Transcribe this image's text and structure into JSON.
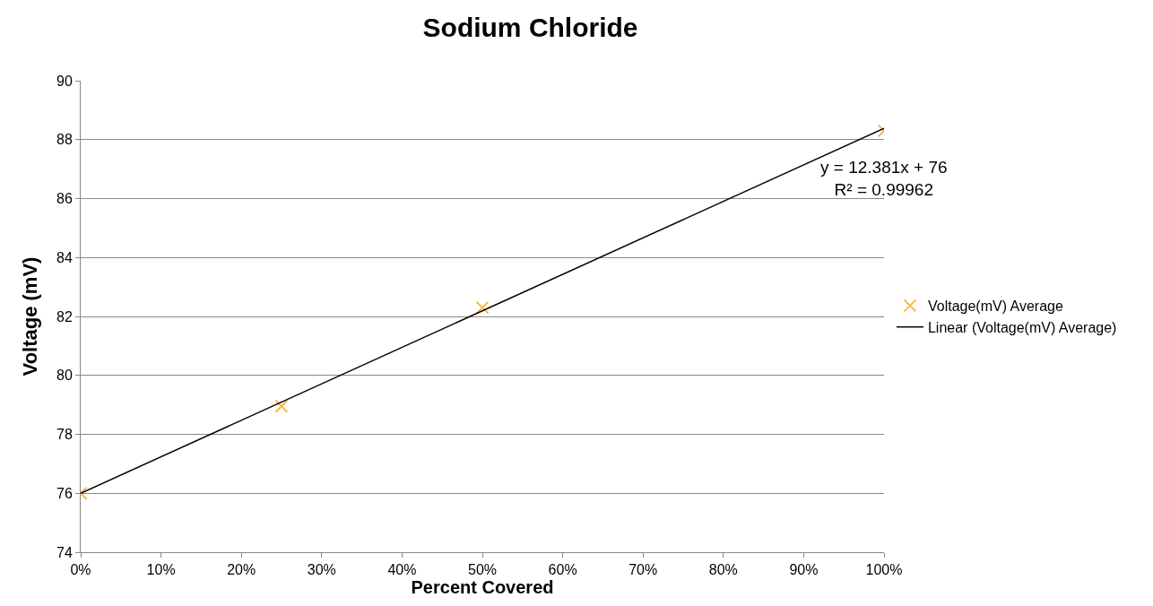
{
  "chart_data": {
    "type": "scatter",
    "title": "Sodium Chloride",
    "xlabel": "Percent Covered",
    "ylabel": "Voltage (mV)",
    "x": [
      0,
      0.25,
      0.5,
      1
    ],
    "series": [
      {
        "name": "Voltage(mV) Average",
        "color": "#f7b84b",
        "values": [
          76,
          78.95,
          82.3,
          88.3
        ],
        "marker": "cross"
      },
      {
        "name": "Linear (Voltage(mV) Average)",
        "type": "line",
        "color": "#000000",
        "x": [
          0,
          1
        ],
        "values": [
          76,
          88.381
        ],
        "marker": "none",
        "line_style": "solid"
      }
    ],
    "annotations": [
      "y = 12.381x + 76\nR² = 0.99962"
    ],
    "xlim": [
      0,
      1
    ],
    "xticks": [
      {
        "value": 0,
        "label": "0%"
      },
      {
        "value": 0.1,
        "label": "10%"
      },
      {
        "value": 0.2,
        "label": "20%"
      },
      {
        "value": 0.3,
        "label": "30%"
      },
      {
        "value": 0.4,
        "label": "40%"
      },
      {
        "value": 0.5,
        "label": "50%"
      },
      {
        "value": 0.6,
        "label": "60%"
      },
      {
        "value": 0.7,
        "label": "70%"
      },
      {
        "value": 0.8,
        "label": "80%"
      },
      {
        "value": 0.9,
        "label": "90%"
      },
      {
        "value": 1,
        "label": "100%"
      }
    ],
    "ylim": [
      74,
      90
    ],
    "yticks": [
      74,
      76,
      78,
      80,
      82,
      84,
      86,
      88,
      90
    ],
    "grid": "y",
    "legend": "right"
  }
}
